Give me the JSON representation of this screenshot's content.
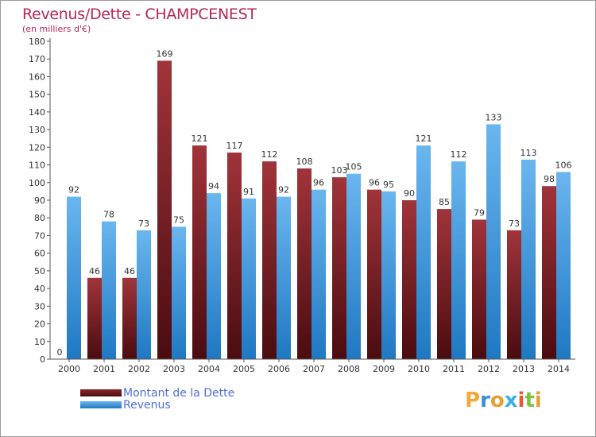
{
  "chart_data": {
    "type": "bar",
    "title": "Revenus/Dette - CHAMPCENEST",
    "subtitle": "(en milliers d'€)",
    "categories": [
      "2000",
      "2001",
      "2002",
      "2003",
      "2004",
      "2005",
      "2006",
      "2007",
      "2008",
      "2009",
      "2010",
      "2011",
      "2012",
      "2013",
      "2014"
    ],
    "series": [
      {
        "name": "Montant de la Dette",
        "color": "#7a1f25",
        "values": [
          0,
          46,
          46,
          169,
          121,
          117,
          112,
          108,
          103,
          96,
          90,
          85,
          79,
          73,
          98
        ]
      },
      {
        "name": "Revenus",
        "color": "#3d96dd",
        "values": [
          92,
          78,
          73,
          75,
          94,
          91,
          92,
          96,
          105,
          95,
          121,
          112,
          133,
          113,
          106
        ]
      }
    ],
    "ylim": [
      0,
      180
    ],
    "yticks": [
      0,
      10,
      20,
      30,
      40,
      50,
      60,
      70,
      80,
      90,
      100,
      110,
      120,
      130,
      140,
      150,
      160,
      170,
      180
    ],
    "grid": false,
    "legend_position": "bottom-left"
  },
  "logo": {
    "letters": [
      "P",
      "r",
      "o",
      "x",
      "i",
      "t",
      "i"
    ],
    "colors": [
      "#f2a93b",
      "#3a8fd6",
      "#e3a22f",
      "#3ab0e0",
      "#e35b3a",
      "#7cc243",
      "#e3a22f"
    ]
  }
}
